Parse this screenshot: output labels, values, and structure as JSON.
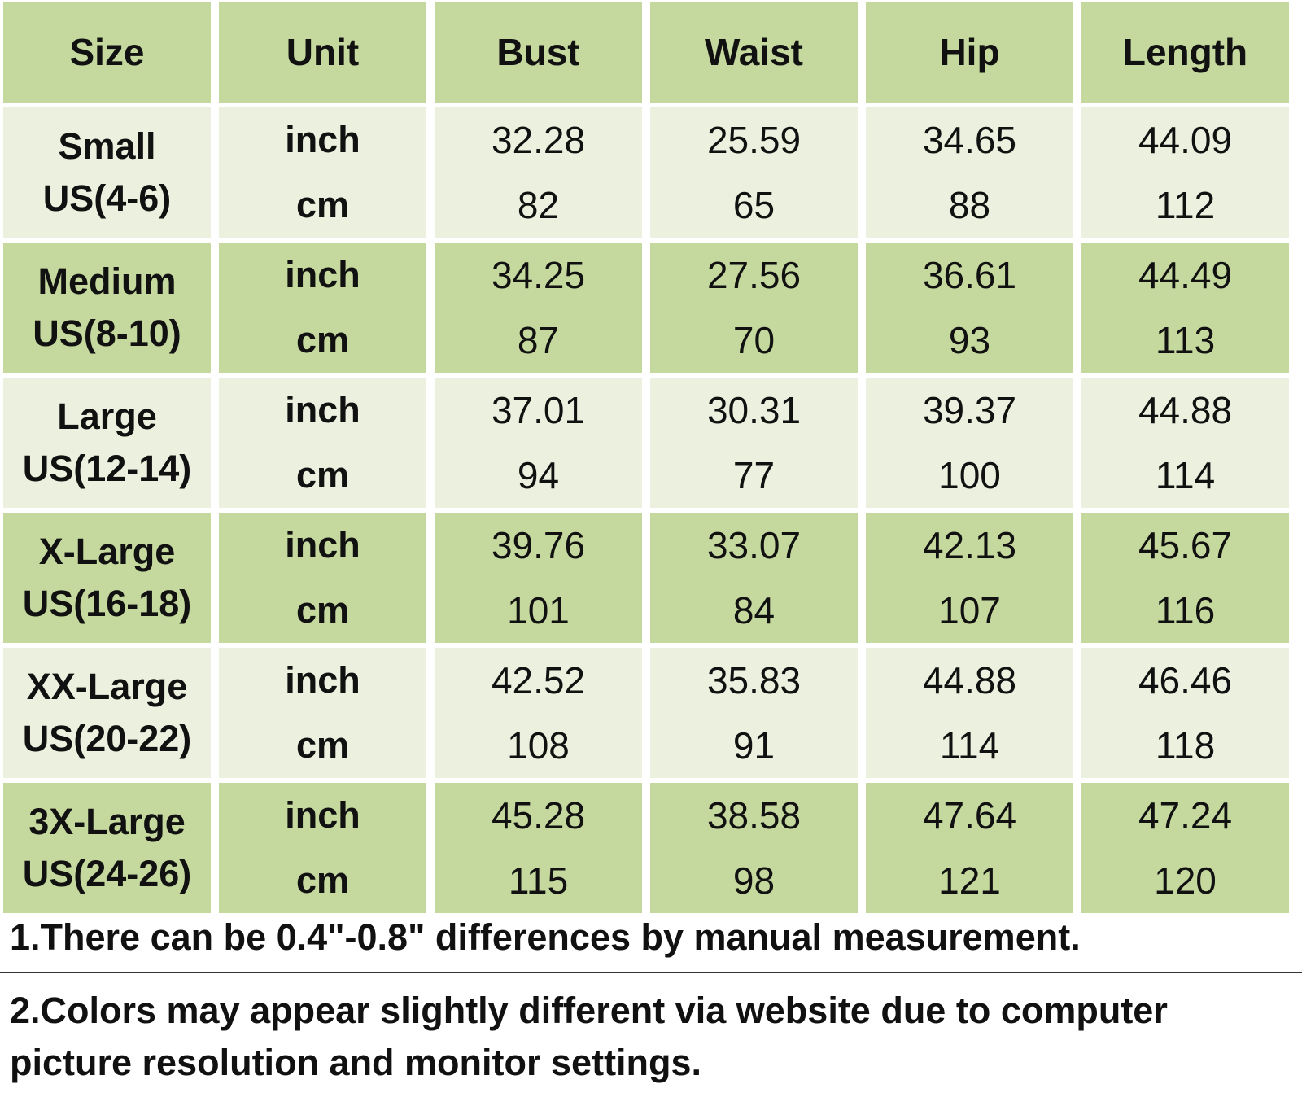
{
  "colors": {
    "header_bg": "#c5d99f",
    "light_row_bg": "#ebf1de",
    "dark_row_bg": "#c5d99f",
    "divider": "#333333"
  },
  "table": {
    "headers": [
      "Size",
      "Unit",
      "Bust",
      "Waist",
      "Hip",
      "Length"
    ],
    "rows": [
      {
        "size_line1": "Small",
        "size_line2": "US(4-6)",
        "unit_inch": "inch",
        "unit_cm": "cm",
        "bust_inch": "32.28",
        "bust_cm": "82",
        "waist_inch": "25.59",
        "waist_cm": "65",
        "hip_inch": "34.65",
        "hip_cm": "88",
        "length_inch": "44.09",
        "length_cm": "112"
      },
      {
        "size_line1": "Medium",
        "size_line2": "US(8-10)",
        "unit_inch": "inch",
        "unit_cm": "cm",
        "bust_inch": "34.25",
        "bust_cm": "87",
        "waist_inch": "27.56",
        "waist_cm": "70",
        "hip_inch": "36.61",
        "hip_cm": "93",
        "length_inch": "44.49",
        "length_cm": "113"
      },
      {
        "size_line1": "Large",
        "size_line2": "US(12-14)",
        "unit_inch": "inch",
        "unit_cm": "cm",
        "bust_inch": "37.01",
        "bust_cm": "94",
        "waist_inch": "30.31",
        "waist_cm": "77",
        "hip_inch": "39.37",
        "hip_cm": "100",
        "length_inch": "44.88",
        "length_cm": "114"
      },
      {
        "size_line1": "X-Large",
        "size_line2": "US(16-18)",
        "unit_inch": "inch",
        "unit_cm": "cm",
        "bust_inch": "39.76",
        "bust_cm": "101",
        "waist_inch": "33.07",
        "waist_cm": "84",
        "hip_inch": "42.13",
        "hip_cm": "107",
        "length_inch": "45.67",
        "length_cm": "116"
      },
      {
        "size_line1": "XX-Large",
        "size_line2": "US(20-22)",
        "unit_inch": "inch",
        "unit_cm": "cm",
        "bust_inch": "42.52",
        "bust_cm": "108",
        "waist_inch": "35.83",
        "waist_cm": "91",
        "hip_inch": "44.88",
        "hip_cm": "114",
        "length_inch": "46.46",
        "length_cm": "118"
      },
      {
        "size_line1": "3X-Large",
        "size_line2": "US(24-26)",
        "unit_inch": "inch",
        "unit_cm": "cm",
        "bust_inch": "45.28",
        "bust_cm": "115",
        "waist_inch": "38.58",
        "waist_cm": "98",
        "hip_inch": "47.64",
        "hip_cm": "121",
        "length_inch": "47.24",
        "length_cm": "120"
      }
    ]
  },
  "notes": {
    "note1": "1.There can be 0.4\"-0.8\" differences by manual measurement.",
    "note2": "2.Colors may appear slightly different via website due to computer picture resolution and monitor settings."
  }
}
